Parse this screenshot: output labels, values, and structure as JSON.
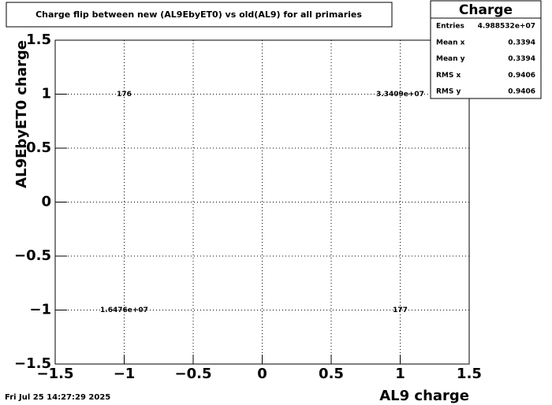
{
  "chart_data": {
    "type": "histogram2d",
    "title": "Charge flip between new (AL9EbyET0) vs old(AL9) for all primaries",
    "xlabel": "AL9 charge",
    "ylabel": "AL9EbyET0 charge",
    "x": [
      -1,
      1,
      -1,
      1
    ],
    "y": [
      1,
      1,
      -1,
      -1
    ],
    "values": [
      176,
      33409000,
      16476000,
      177
    ],
    "value_labels": [
      "176",
      "3.3409e+07",
      "1.6476e+07",
      "177"
    ],
    "xlim": [
      -1.5,
      1.5
    ],
    "ylim": [
      -1.5,
      1.5
    ],
    "xticks": [
      {
        "value": -1.5,
        "label": "−1.5"
      },
      {
        "value": -1,
        "label": "−1"
      },
      {
        "value": -0.5,
        "label": "−0.5"
      },
      0,
      0.5,
      1,
      1.5
    ],
    "yticks": [
      {
        "value": -1.5,
        "label": "−1.5"
      },
      {
        "value": -1,
        "label": "−1"
      },
      {
        "value": -0.5,
        "label": "−0.5"
      },
      0,
      0.5,
      1,
      1.5
    ],
    "grid": true,
    "stats": {
      "title": "Charge",
      "entries": [
        {
          "name": "Entries",
          "value": 49885320,
          "label": "4.988532e+07"
        },
        {
          "name": "Mean x",
          "value": 0.3394
        },
        {
          "name": "Mean y",
          "value": 0.3394
        },
        {
          "name": "RMS x",
          "value": 0.9406
        },
        {
          "name": "RMS y",
          "value": 0.9406
        }
      ]
    },
    "date": "Fri Jul 25 14:27:29 2025"
  }
}
